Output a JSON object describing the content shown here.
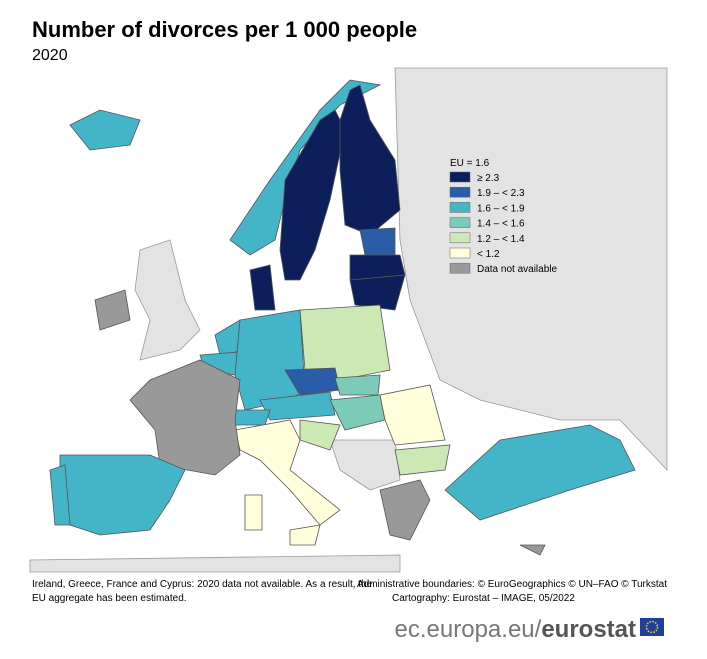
{
  "header": {
    "title": "Number of divorces per 1 000 people",
    "subtitle": "2020"
  },
  "legend": {
    "title": "EU = 1.6",
    "classes": [
      {
        "label": "≥ 2.3",
        "color": "#0c1f5b"
      },
      {
        "label": "1.9 – < 2.3",
        "color": "#2a5ca8"
      },
      {
        "label": "1.6 – < 1.9",
        "color": "#44b4c8"
      },
      {
        "label": "1.4 – < 1.6",
        "color": "#7ccbb8"
      },
      {
        "label": "1.2 – < 1.4",
        "color": "#cce8b4"
      },
      {
        "label": "< 1.2",
        "color": "#ffffdc"
      },
      {
        "label": "Data not available",
        "color": "#999999"
      }
    ]
  },
  "notes": {
    "left": [
      "Ireland, Greece, France and Cyprus: 2020 data not available. As a result, the",
      "EU aggregate has been estimated."
    ],
    "right": [
      "Administrative boundaries: © EuroGeographics © UN–FAO © Turkstat",
      "Cartography: Eurostat – IMAGE, 05/2022"
    ]
  },
  "footer": {
    "site": "ec.europa.eu/",
    "brand": "eurostat"
  }
}
